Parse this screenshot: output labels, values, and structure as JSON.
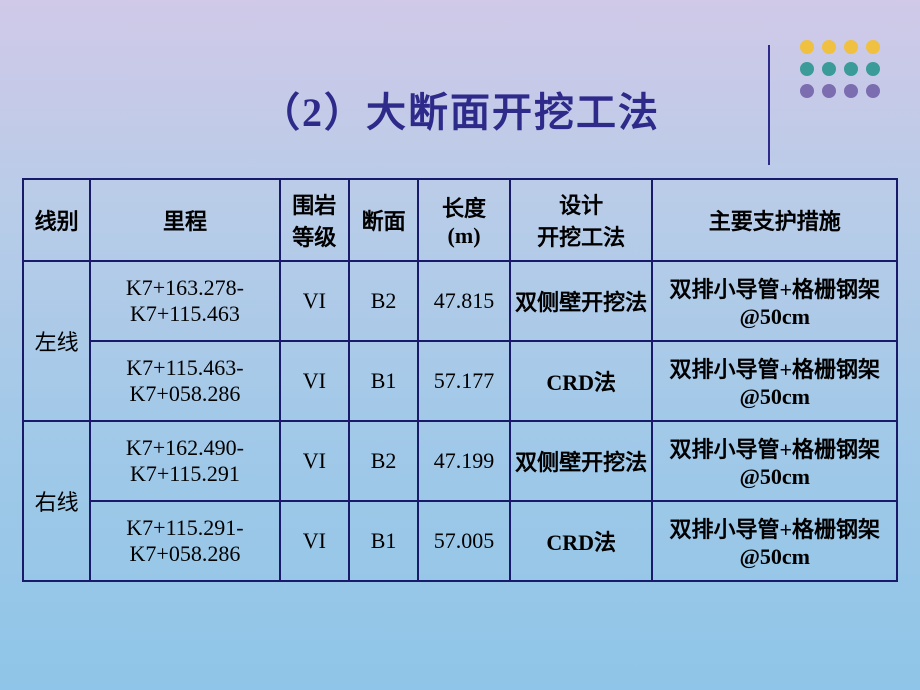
{
  "title": "（2）大断面开挖工法",
  "decoration": {
    "colors": {
      "yellow": "#f0c040",
      "teal": "#3a9b98",
      "purple": "#7b6db0"
    },
    "rows": [
      [
        "yellow",
        "yellow",
        "yellow",
        "yellow"
      ],
      [
        "teal",
        "teal",
        "teal",
        "teal"
      ],
      [
        "purple",
        "purple",
        "purple",
        "purple"
      ]
    ]
  },
  "table": {
    "headers": {
      "line": "线别",
      "mileage": "里程",
      "rock": "围岩\n等级",
      "section": "断面",
      "length": "长度\n(m)",
      "method": "设计\n开挖工法",
      "support": "主要支护措施"
    },
    "groups": [
      {
        "label": "左线",
        "rows": [
          {
            "mileage": "K7+163.278-\nK7+115.463",
            "rock": "VI",
            "section": "B2",
            "length": "47.815",
            "method": "双侧壁开挖法",
            "support": "双排小导管+格栅钢架@50cm"
          },
          {
            "mileage": "K7+115.463-\nK7+058.286",
            "rock": "VI",
            "section": "B1",
            "length": "57.177",
            "method": "CRD法",
            "support": "双排小导管+格栅钢架@50cm"
          }
        ]
      },
      {
        "label": "右线",
        "rows": [
          {
            "mileage": "K7+162.490-\nK7+115.291",
            "rock": "VI",
            "section": "B2",
            "length": "47.199",
            "method": "双侧壁开挖法",
            "support": "双排小导管+格栅钢架@50cm"
          },
          {
            "mileage": "K7+115.291-\nK7+058.286",
            "rock": "VI",
            "section": "B1",
            "length": "57.005",
            "method": "CRD法",
            "support": "双排小导管+格栅钢架@50cm"
          }
        ]
      }
    ]
  }
}
